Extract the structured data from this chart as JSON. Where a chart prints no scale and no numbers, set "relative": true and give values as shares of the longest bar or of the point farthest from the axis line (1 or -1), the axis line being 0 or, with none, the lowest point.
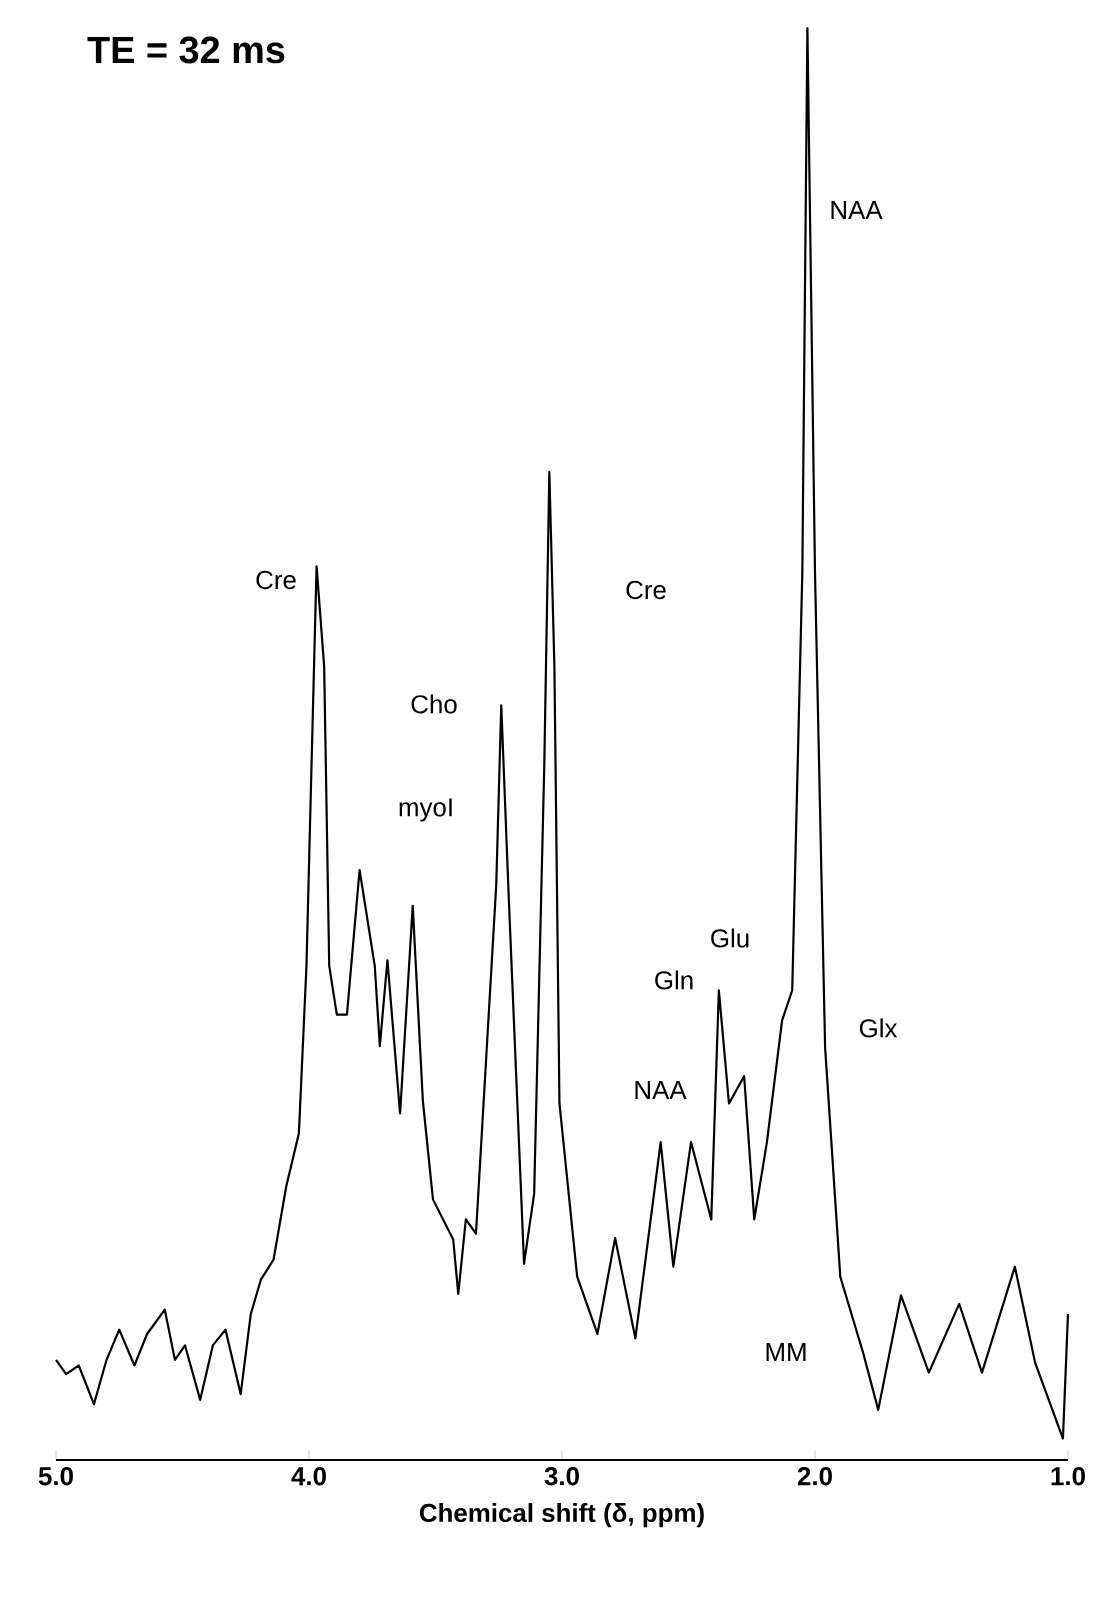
{
  "chart_data": {
    "type": "line",
    "title": "TE = 32 ms",
    "xlabel": "Chemical shift (δ, ppm)",
    "relative": true,
    "color": "#000000",
    "xlim": [
      5.0,
      1.0
    ],
    "xticks": [
      {
        "value": 5.0,
        "label": "5.0"
      },
      {
        "value": 4.0,
        "label": "4.0"
      },
      {
        "value": 3.0,
        "label": "3.0"
      },
      {
        "value": 2.0,
        "label": "2.0"
      },
      {
        "value": 1.0,
        "label": "1.0"
      }
    ],
    "x": [
      5.0,
      4.96,
      4.91,
      4.85,
      4.8,
      4.75,
      4.69,
      4.64,
      4.57,
      4.53,
      4.49,
      4.43,
      4.38,
      4.33,
      4.27,
      4.23,
      4.19,
      4.14,
      4.09,
      4.04,
      4.01,
      3.99,
      3.97,
      3.94,
      3.92,
      3.89,
      3.85,
      3.8,
      3.74,
      3.72,
      3.69,
      3.64,
      3.59,
      3.55,
      3.51,
      3.43,
      3.41,
      3.38,
      3.34,
      3.26,
      3.24,
      3.21,
      3.15,
      3.11,
      3.07,
      3.05,
      3.03,
      3.01,
      2.94,
      2.86,
      2.79,
      2.71,
      2.61,
      2.56,
      2.49,
      2.41,
      2.38,
      2.34,
      2.28,
      2.24,
      2.19,
      2.13,
      2.09,
      2.05,
      2.03,
      2.0,
      1.96,
      1.9,
      1.81,
      1.75,
      1.66,
      1.55,
      1.43,
      1.34,
      1.21,
      1.13,
      1.02,
      1.0
    ],
    "values": [
      0.07,
      0.06,
      0.066,
      0.039,
      0.07,
      0.091,
      0.066,
      0.088,
      0.105,
      0.07,
      0.08,
      0.042,
      0.08,
      0.091,
      0.046,
      0.102,
      0.126,
      0.14,
      0.191,
      0.228,
      0.345,
      0.485,
      0.624,
      0.554,
      0.345,
      0.311,
      0.311,
      0.412,
      0.345,
      0.289,
      0.349,
      0.242,
      0.387,
      0.251,
      0.182,
      0.154,
      0.116,
      0.168,
      0.158,
      0.401,
      0.527,
      0.391,
      0.137,
      0.186,
      0.485,
      0.69,
      0.554,
      0.249,
      0.128,
      0.088,
      0.155,
      0.085,
      0.222,
      0.135,
      0.222,
      0.168,
      0.328,
      0.249,
      0.268,
      0.168,
      0.222,
      0.307,
      0.328,
      0.62,
      1.0,
      0.62,
      0.288,
      0.128,
      0.075,
      0.035,
      0.115,
      0.061,
      0.109,
      0.061,
      0.135,
      0.068,
      0.015,
      0.102
    ],
    "annotations": [
      "Cre",
      "Cho",
      "myoI",
      "Cre",
      "NAA",
      "Glu",
      "Gln",
      "NAA",
      "Glx",
      "MM"
    ]
  }
}
